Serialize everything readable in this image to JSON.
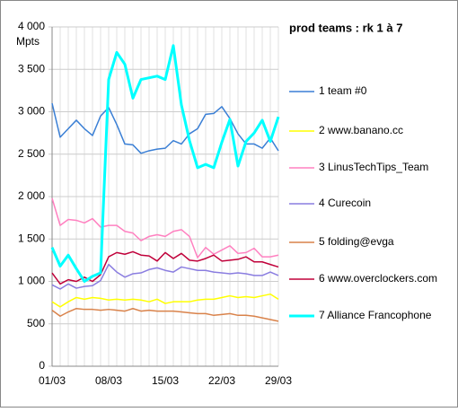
{
  "chart_data": {
    "type": "line",
    "title": "prod teams : rk 1 à 7",
    "y_label": "Mpts",
    "categories": [
      "01/03",
      null,
      null,
      null,
      null,
      null,
      null,
      "08/03",
      null,
      null,
      null,
      null,
      null,
      null,
      "15/03",
      null,
      null,
      null,
      null,
      null,
      null,
      "22/03",
      null,
      null,
      null,
      null,
      null,
      null,
      "29/03"
    ],
    "ylim": [
      0,
      4000
    ],
    "yticks": [
      0,
      500,
      {
        "value": 1000,
        "label": "1 000"
      },
      {
        "value": 1500,
        "label": "1 500"
      },
      {
        "value": 2000,
        "label": "2 000"
      },
      {
        "value": 2500,
        "label": "2 500"
      },
      {
        "value": 3000,
        "label": "3 000"
      },
      {
        "value": 3500,
        "label": "3 500"
      },
      {
        "value": 4000,
        "label": "4 000"
      }
    ],
    "grid": true,
    "series": [
      {
        "name": "1 team #0",
        "color": "#3a7fd5",
        "values": [
          3100,
          2700,
          2800,
          2900,
          2800,
          2720,
          2950,
          3050,
          2850,
          2620,
          2610,
          2510,
          2540,
          2560,
          2570,
          2660,
          2620,
          2740,
          2800,
          2970,
          2980,
          3060,
          2920,
          2740,
          2620,
          2620,
          2570,
          2690,
          2540
        ]
      },
      {
        "name": "2 www.banano.cc",
        "color": "#ffff00",
        "values": [
          760,
          700,
          760,
          810,
          790,
          810,
          800,
          780,
          790,
          780,
          790,
          780,
          760,
          790,
          740,
          760,
          760,
          760,
          780,
          790,
          790,
          810,
          830,
          810,
          820,
          810,
          830,
          850,
          790
        ]
      },
      {
        "name": "3 LinusTechTips_Team",
        "color": "#ff80c0",
        "values": [
          1980,
          1660,
          1730,
          1720,
          1690,
          1740,
          1640,
          1660,
          1660,
          1590,
          1570,
          1480,
          1530,
          1550,
          1530,
          1590,
          1610,
          1530,
          1280,
          1400,
          1320,
          1370,
          1420,
          1330,
          1340,
          1390,
          1290,
          1290,
          1310
        ]
      },
      {
        "name": "4 Curecoin",
        "color": "#8a7de0",
        "values": [
          960,
          910,
          970,
          920,
          940,
          950,
          1010,
          1200,
          1110,
          1050,
          1090,
          1100,
          1140,
          1160,
          1130,
          1110,
          1170,
          1150,
          1130,
          1130,
          1110,
          1100,
          1090,
          1100,
          1090,
          1070,
          1070,
          1110,
          1070
        ]
      },
      {
        "name": "5 folding@evga",
        "color": "#d9824a",
        "values": [
          660,
          590,
          640,
          680,
          670,
          670,
          660,
          670,
          660,
          650,
          680,
          650,
          660,
          650,
          650,
          650,
          640,
          630,
          620,
          620,
          600,
          610,
          620,
          600,
          600,
          590,
          570,
          550,
          530
        ]
      },
      {
        "name": "6 www.overclockers.com",
        "color": "#c0003a",
        "values": [
          1100,
          970,
          1020,
          1000,
          1050,
          1000,
          1080,
          1290,
          1340,
          1320,
          1350,
          1310,
          1300,
          1240,
          1340,
          1270,
          1330,
          1250,
          1240,
          1270,
          1310,
          1240,
          1250,
          1260,
          1290,
          1230,
          1230,
          1200,
          1170
        ]
      },
      {
        "name": "7 Alliance Francophone",
        "color": "#00ffff",
        "values": [
          1400,
          1180,
          1310,
          1150,
          1000,
          1060,
          1100,
          3380,
          3700,
          3560,
          3160,
          3380,
          3400,
          3420,
          3380,
          3780,
          3080,
          2660,
          2340,
          2380,
          2340,
          2640,
          2910,
          2360,
          2650,
          2750,
          2900,
          2650,
          2940
        ]
      }
    ]
  }
}
